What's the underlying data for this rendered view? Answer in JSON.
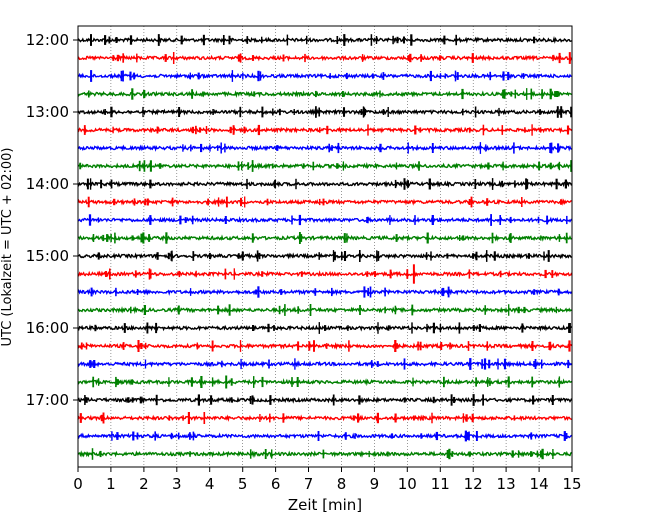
{
  "chart_data": {
    "type": "line",
    "subtype": "helicorder",
    "xlabel": "Zeit  [min]",
    "ylabel": "UTC (Lokalzeit = UTC + 02:00)",
    "xlim": [
      0,
      15
    ],
    "x_ticks": [
      "0",
      "1",
      "2",
      "3",
      "4",
      "5",
      "6",
      "7",
      "8",
      "9",
      "10",
      "11",
      "12",
      "13",
      "14",
      "15"
    ],
    "y_ticks": [
      "12:00",
      "13:00",
      "14:00",
      "15:00",
      "16:00",
      "17:00"
    ],
    "grid": "vertical dotted at every minute",
    "series_colors": [
      "#000000",
      "#ff0000",
      "#0000ff",
      "#008000"
    ],
    "traces": [
      {
        "start": "12:00",
        "color": "#000000",
        "events": [
          {
            "x": 4.6,
            "amp": 0.4
          },
          {
            "x": 9.7,
            "amp": 0.3
          }
        ]
      },
      {
        "start": "12:15",
        "color": "#ff0000",
        "events": []
      },
      {
        "start": "12:30",
        "color": "#0000ff",
        "events": []
      },
      {
        "start": "12:45",
        "color": "#008000",
        "events": []
      },
      {
        "start": "13:00",
        "color": "#000000",
        "events": [
          {
            "x": 5.6,
            "amp": 0.5
          }
        ]
      },
      {
        "start": "13:15",
        "color": "#ff0000",
        "events": []
      },
      {
        "start": "13:30",
        "color": "#0000ff",
        "events": []
      },
      {
        "start": "13:45",
        "color": "#008000",
        "events": [
          {
            "x": 14.0,
            "amp": 0.4
          }
        ]
      },
      {
        "start": "14:00",
        "color": "#000000",
        "events": [
          {
            "x": 0.3,
            "amp": 0.5
          },
          {
            "x": 0.7,
            "amp": 0.4
          }
        ]
      },
      {
        "start": "14:15",
        "color": "#ff0000",
        "events": []
      },
      {
        "start": "14:30",
        "color": "#0000ff",
        "events": []
      },
      {
        "start": "14:45",
        "color": "#008000",
        "events": []
      },
      {
        "start": "15:00",
        "color": "#000000",
        "events": [
          {
            "x": 7.8,
            "amp": 0.4
          },
          {
            "x": 12.1,
            "amp": 0.4
          }
        ]
      },
      {
        "start": "15:15",
        "color": "#ff0000",
        "events": [
          {
            "x": 10.2,
            "amp": 0.9
          }
        ]
      },
      {
        "start": "15:30",
        "color": "#0000ff",
        "events": []
      },
      {
        "start": "15:45",
        "color": "#008000",
        "events": []
      },
      {
        "start": "16:00",
        "color": "#000000",
        "events": []
      },
      {
        "start": "16:15",
        "color": "#ff0000",
        "events": []
      },
      {
        "start": "16:30",
        "color": "#0000ff",
        "events": []
      },
      {
        "start": "16:45",
        "color": "#008000",
        "events": [
          {
            "x": 4.5,
            "amp": 0.6
          }
        ]
      },
      {
        "start": "17:00",
        "color": "#000000",
        "events": [
          {
            "x": 10.8,
            "amp": 0.3
          }
        ]
      },
      {
        "start": "17:15",
        "color": "#ff0000",
        "events": []
      },
      {
        "start": "17:30",
        "color": "#0000ff",
        "events": []
      },
      {
        "start": "17:45",
        "color": "#008000",
        "events": []
      }
    ]
  }
}
